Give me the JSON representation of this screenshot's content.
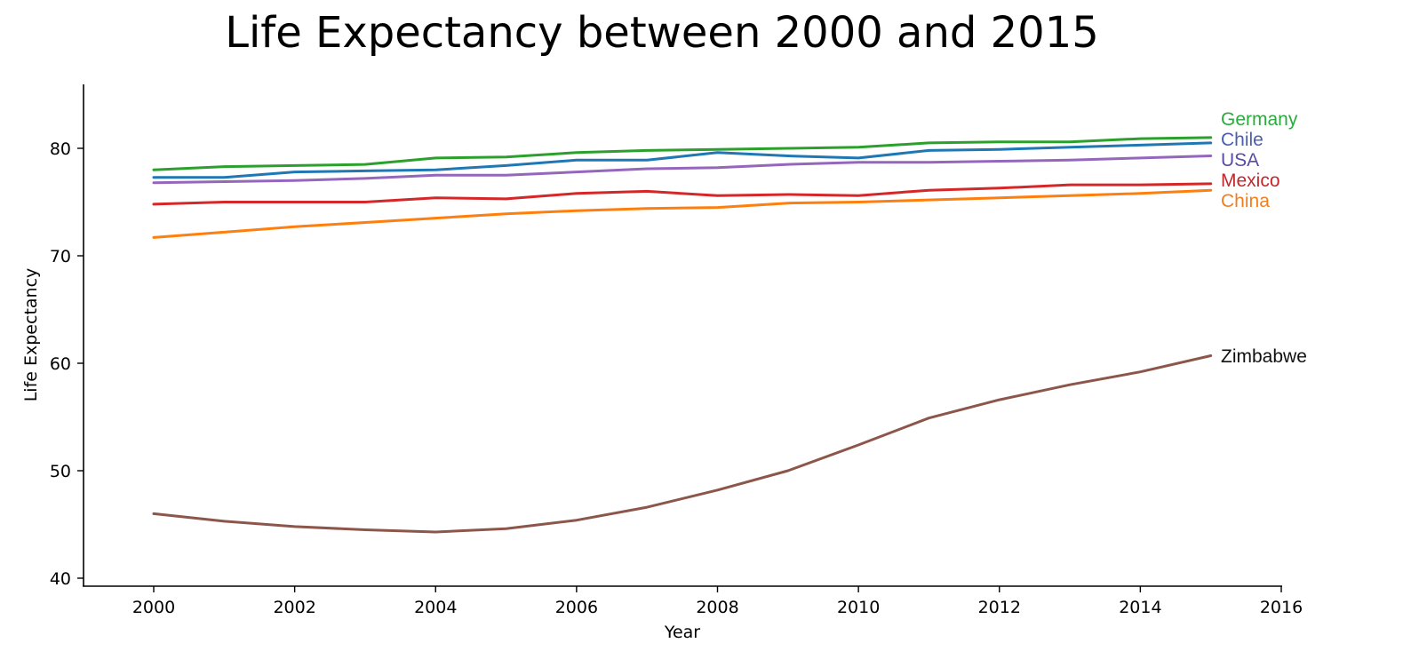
{
  "chart_data": {
    "type": "line",
    "title": "Life Expectancy between 2000 and 2015",
    "xlabel": "Year",
    "ylabel": "Life Expectancy",
    "xlim": [
      1999,
      2016
    ],
    "ylim": [
      39.3,
      86
    ],
    "xticks": [
      2000,
      2002,
      2004,
      2006,
      2008,
      2010,
      2012,
      2014,
      2016
    ],
    "yticks": [
      40,
      50,
      60,
      70,
      80
    ],
    "grid": false,
    "legend": "direct labels at line ends (right)",
    "x": [
      2000,
      2001,
      2002,
      2003,
      2004,
      2005,
      2006,
      2007,
      2008,
      2009,
      2010,
      2011,
      2012,
      2013,
      2014,
      2015
    ],
    "series": [
      {
        "name": "Chile",
        "color": "#1f77b4",
        "label_color": "#4a5fae",
        "values": [
          77.3,
          77.3,
          77.8,
          77.9,
          78.0,
          78.4,
          78.9,
          78.9,
          79.6,
          79.3,
          79.1,
          79.8,
          79.9,
          80.1,
          80.3,
          80.5
        ]
      },
      {
        "name": "China",
        "color": "#ff7f0e",
        "label_color": "#f07f1f",
        "values": [
          71.7,
          72.2,
          72.7,
          73.1,
          73.5,
          73.9,
          74.2,
          74.4,
          74.5,
          74.9,
          75.0,
          75.2,
          75.4,
          75.6,
          75.8,
          76.1
        ]
      },
      {
        "name": "Germany",
        "color": "#2ca02c",
        "label_color": "#2aab3d",
        "values": [
          78.0,
          78.3,
          78.4,
          78.5,
          79.1,
          79.2,
          79.6,
          79.8,
          79.9,
          80.0,
          80.1,
          80.5,
          80.6,
          80.6,
          80.9,
          81.0
        ]
      },
      {
        "name": "Mexico",
        "color": "#d62728",
        "label_color": "#c0282d",
        "values": [
          74.8,
          75.0,
          75.0,
          75.0,
          75.4,
          75.3,
          75.8,
          76.0,
          75.6,
          75.7,
          75.6,
          76.1,
          76.3,
          76.6,
          76.6,
          76.7
        ]
      },
      {
        "name": "USA",
        "color": "#9467bd",
        "label_color": "#5b4aa4",
        "values": [
          76.8,
          76.9,
          77.0,
          77.2,
          77.5,
          77.5,
          77.8,
          78.1,
          78.2,
          78.5,
          78.7,
          78.7,
          78.8,
          78.9,
          79.1,
          79.3
        ]
      },
      {
        "name": "Zimbabwe",
        "color": "#8c564b",
        "label_color": "#111111",
        "values": [
          46.0,
          45.3,
          44.8,
          44.5,
          44.3,
          44.6,
          45.4,
          46.6,
          48.2,
          50.0,
          52.4,
          54.9,
          56.6,
          58.0,
          59.2,
          60.7
        ]
      }
    ]
  }
}
